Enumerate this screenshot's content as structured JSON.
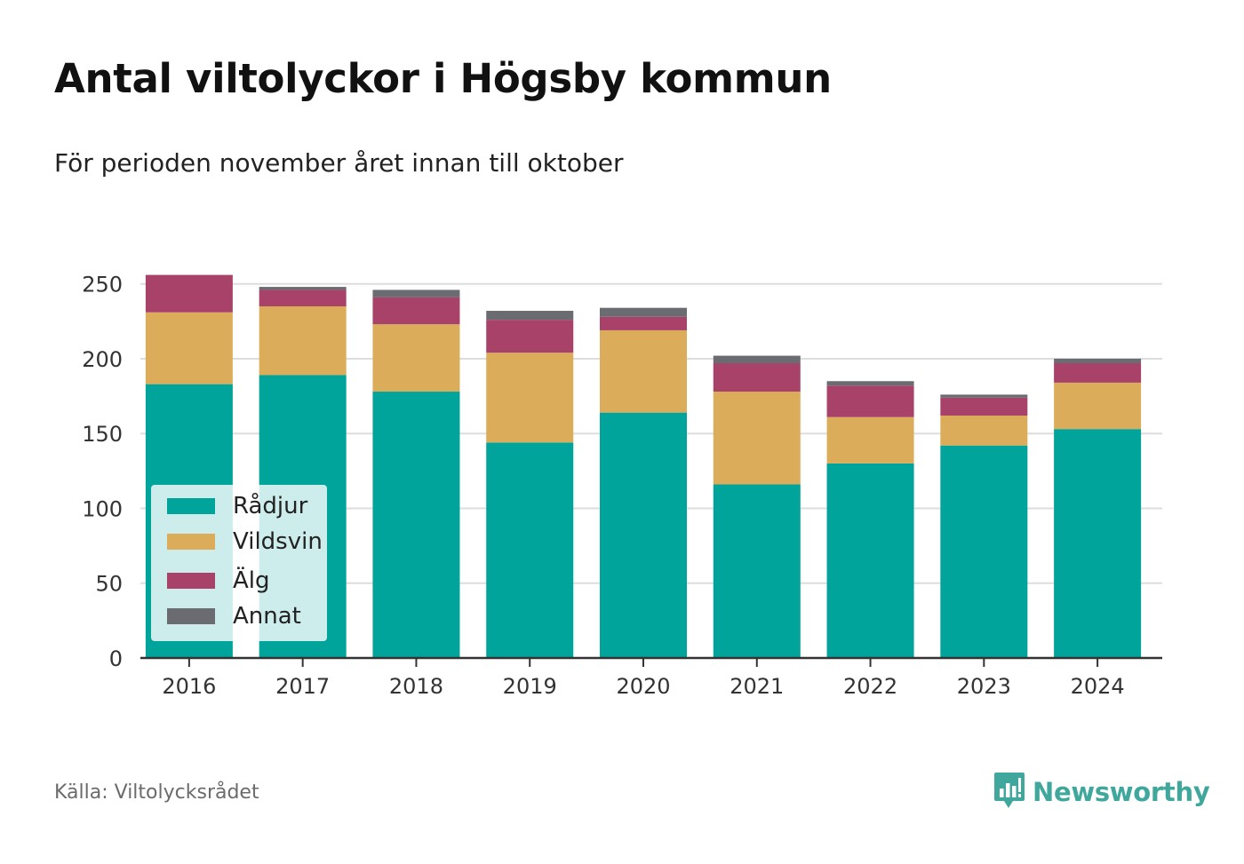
{
  "header": {
    "title": "Antal viltolyckor i Högsby kommun",
    "subtitle": "För perioden november året innan till oktober"
  },
  "footer": {
    "source": "Källa: Viltolycksrådet",
    "brand": "Newsworthy",
    "brand_icon": "bar-chart-speech-bubble-icon"
  },
  "colors": {
    "Rådjur": "#00a49a",
    "Vildsvin": "#dbad5a",
    "Älg": "#a84269",
    "Annat": "#6b6c72",
    "grid": "#dddddd",
    "axis": "#333333",
    "brand": "#3fa79b"
  },
  "chart_data": {
    "type": "bar",
    "stacked": true,
    "categories": [
      "2016",
      "2017",
      "2018",
      "2019",
      "2020",
      "2021",
      "2022",
      "2023",
      "2024"
    ],
    "series": [
      {
        "name": "Rådjur",
        "values": [
          183,
          189,
          178,
          144,
          164,
          116,
          130,
          142,
          153
        ]
      },
      {
        "name": "Vildsvin",
        "values": [
          48,
          46,
          45,
          60,
          55,
          62,
          31,
          20,
          31
        ]
      },
      {
        "name": "Älg",
        "values": [
          25,
          11,
          18,
          22,
          9,
          19,
          21,
          12,
          13
        ]
      },
      {
        "name": "Annat",
        "values": [
          0,
          2,
          5,
          6,
          6,
          5,
          3,
          2,
          3
        ]
      }
    ],
    "ylim": [
      0,
      270
    ],
    "yticks": [
      0,
      50,
      100,
      150,
      200,
      250
    ],
    "grid": true,
    "legend_position": "bottom-left",
    "xlabel": "",
    "ylabel": ""
  }
}
